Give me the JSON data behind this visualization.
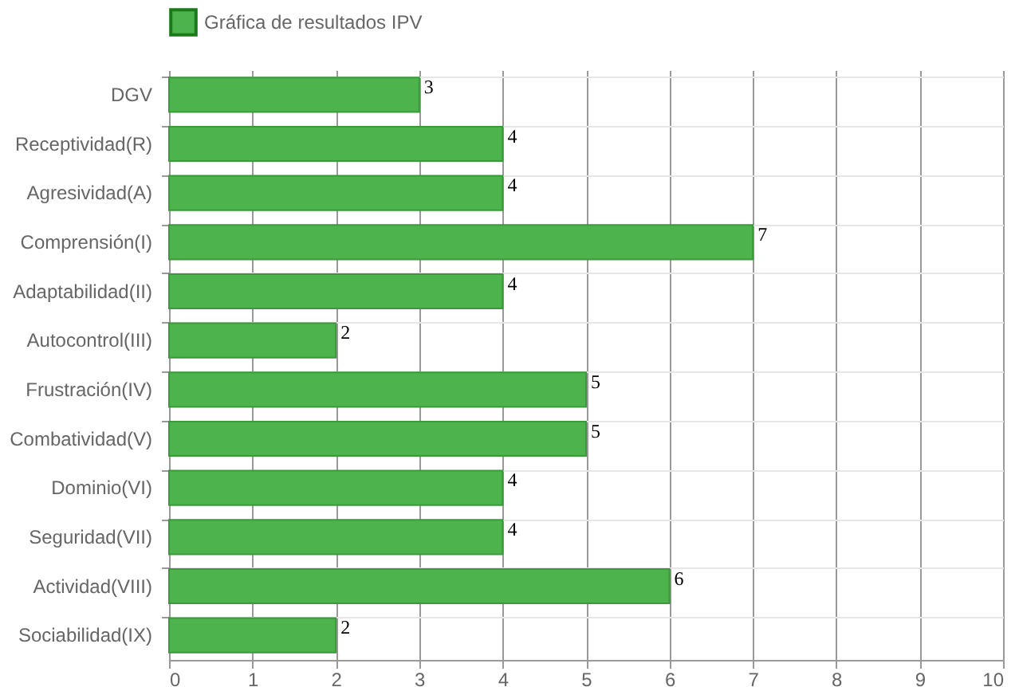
{
  "chart_data": {
    "type": "bar",
    "orientation": "horizontal",
    "categories": [
      "DGV",
      "Receptividad(R)",
      "Agresividad(A)",
      "Comprensión(I)",
      "Adaptabilidad(II)",
      "Autocontrol(III)",
      "Frustración(IV)",
      "Combatividad(V)",
      "Dominio(VI)",
      "Seguridad(VII)",
      "Actividad(VIII)",
      "Sociabilidad(IX)"
    ],
    "series": [
      {
        "name": "Gráfica de resultados IPV",
        "color": "#4db34d",
        "values": [
          3,
          4,
          4,
          7,
          4,
          2,
          5,
          5,
          4,
          4,
          6,
          2
        ]
      }
    ],
    "xlim": [
      0,
      10
    ],
    "xticks": [
      0,
      1,
      2,
      3,
      4,
      5,
      6,
      7,
      8,
      9,
      10
    ],
    "grid": true,
    "legend": "top",
    "data_labels": true
  }
}
